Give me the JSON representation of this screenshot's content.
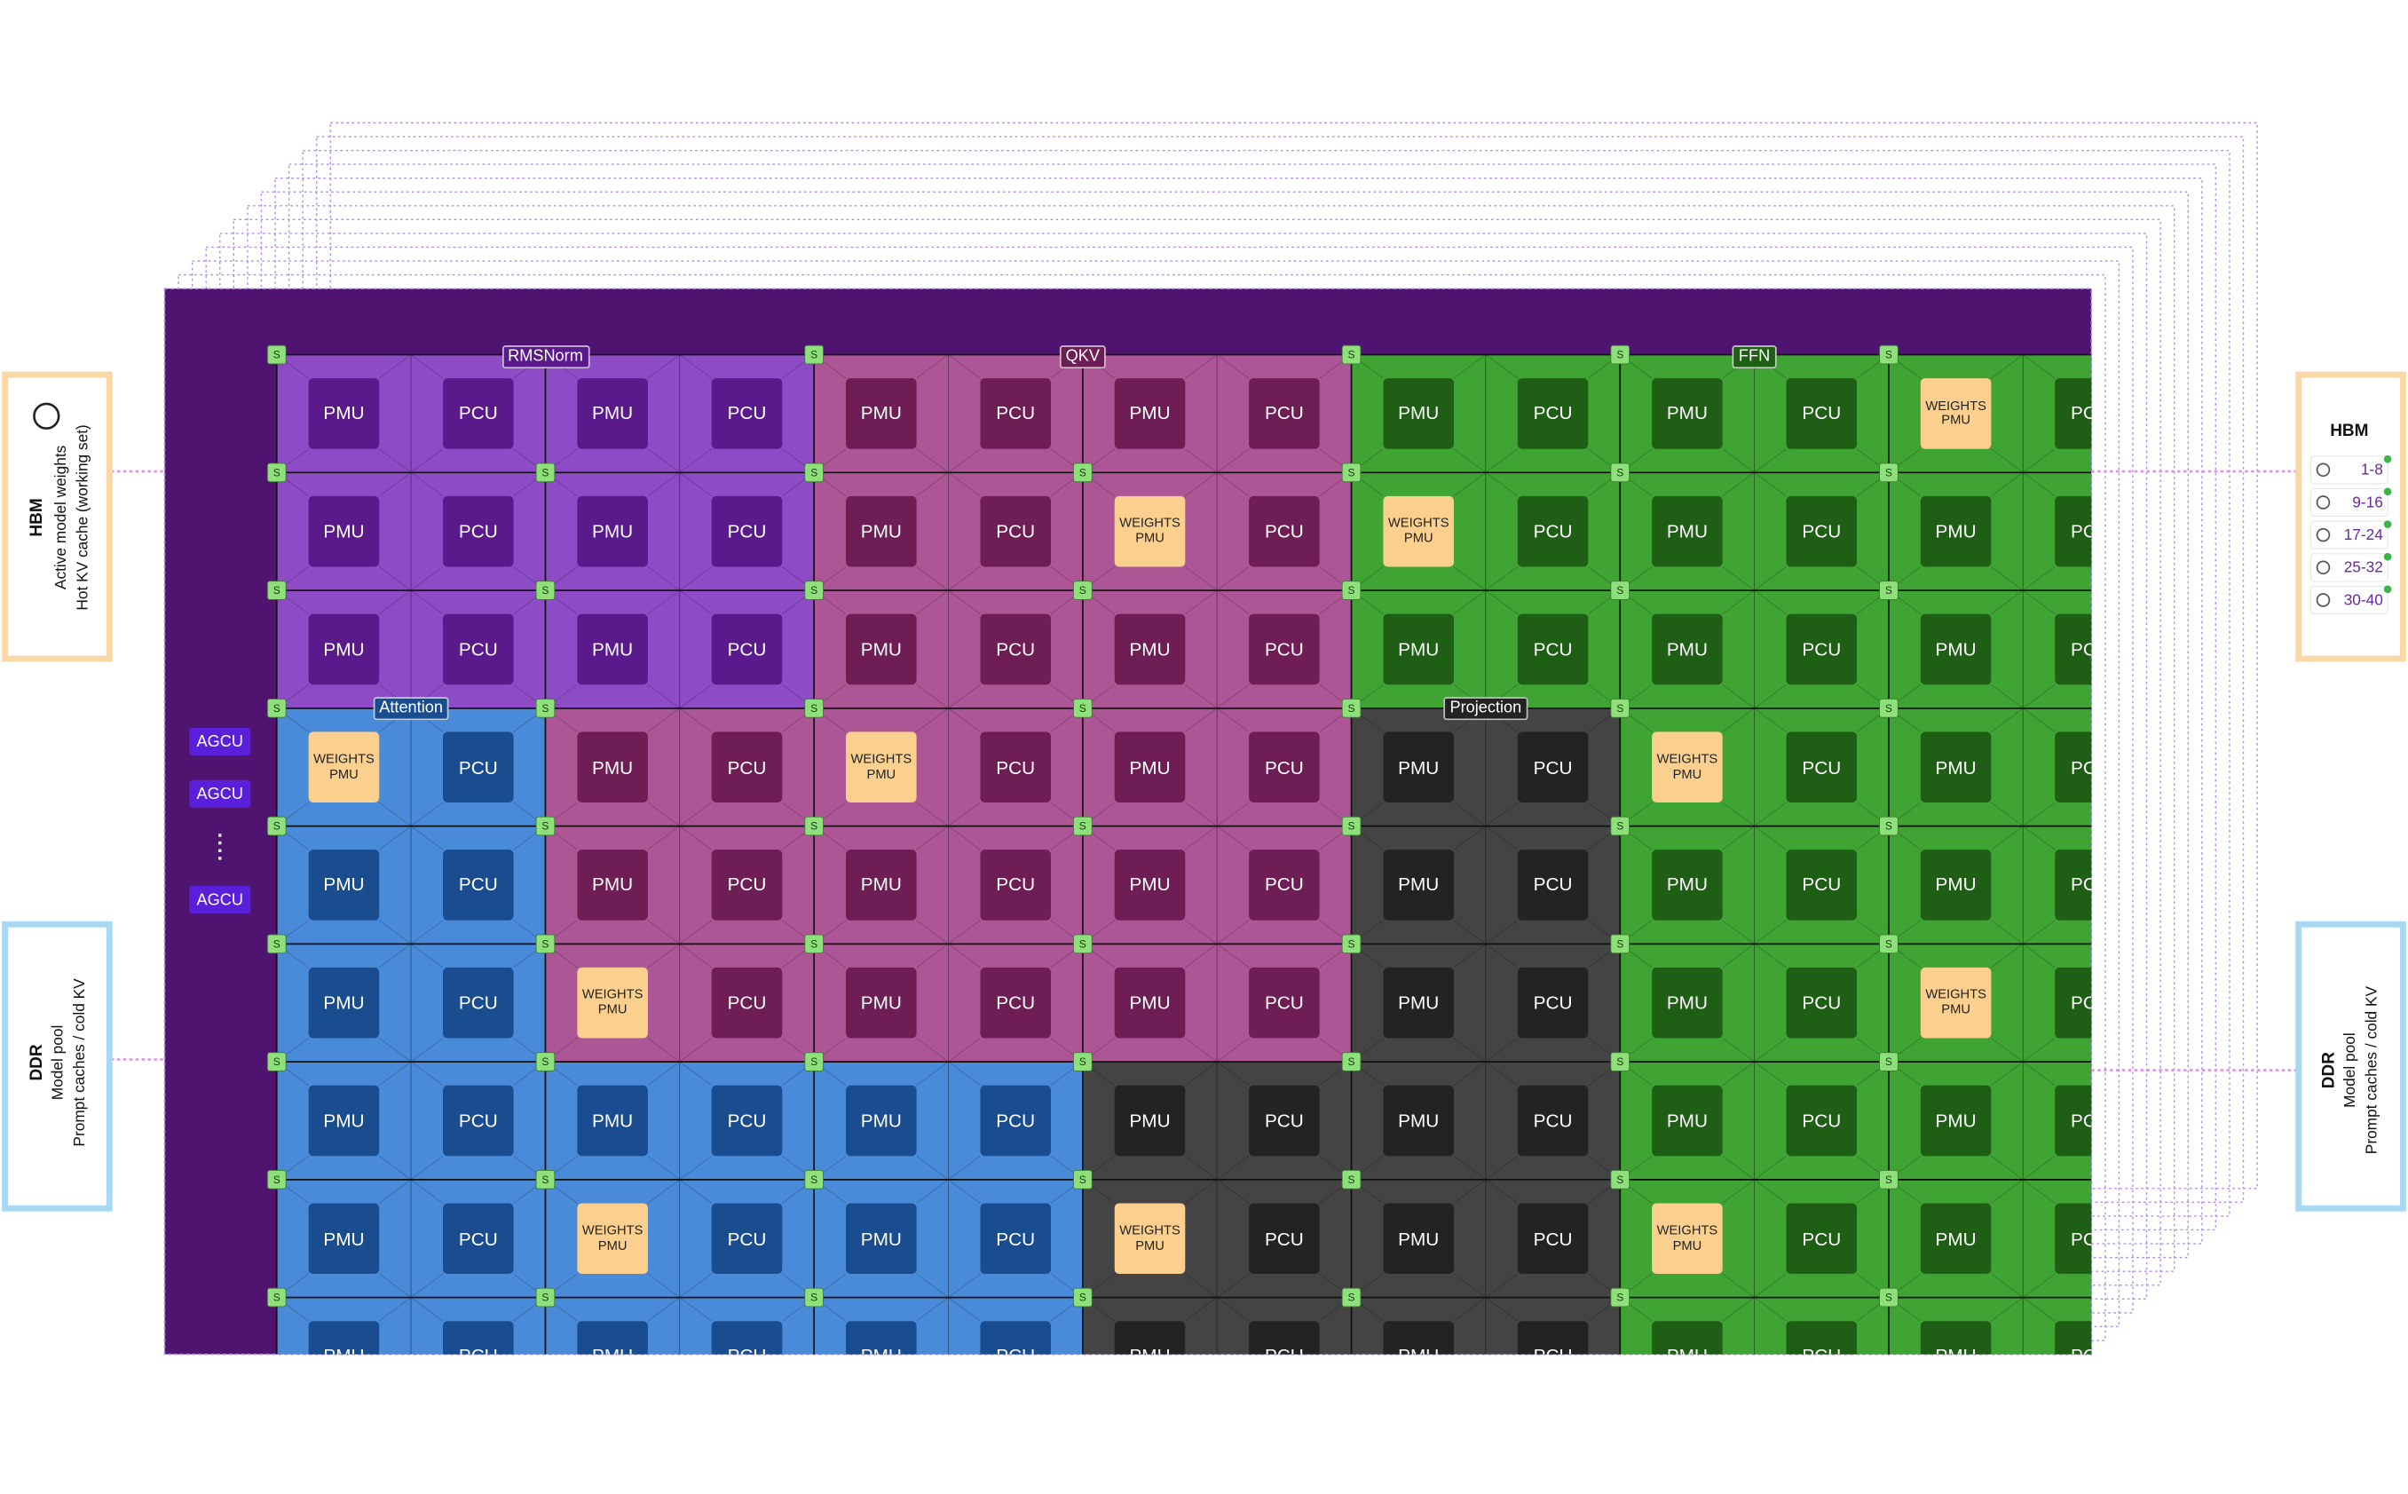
{
  "fabric": {
    "section_labels": [
      "RMSNorm",
      "QKV",
      "FFN",
      "Attention",
      "Projection"
    ],
    "switch_label": "S",
    "agcu_labels": [
      "AGCU",
      "AGCU",
      "AGCU"
    ],
    "grid": [
      [
        "PMU",
        "PCU",
        "PMU",
        "PCU",
        "PMU",
        "PCU",
        "PMU",
        "PCU",
        "PMU",
        "PCU",
        "PMU",
        "PCU",
        "WEIGHTS PMU",
        "PCU"
      ],
      [
        "PMU",
        "PCU",
        "PMU",
        "PCU",
        "PMU",
        "PCU",
        "WEIGHTS PMU",
        "PCU",
        "WEIGHTS PMU",
        "PCU",
        "PMU",
        "PCU",
        "PMU",
        "PCU"
      ],
      [
        "PMU",
        "PCU",
        "PMU",
        "PCU",
        "PMU",
        "PCU",
        "PMU",
        "PCU",
        "PMU",
        "PCU",
        "PMU",
        "PCU",
        "PMU",
        "PCU"
      ],
      [
        "WEIGHTS PMU",
        "PCU",
        "PMU",
        "PCU",
        "WEIGHTS PMU",
        "PCU",
        "PMU",
        "PCU",
        "PMU",
        "PCU",
        "WEIGHTS PMU",
        "PCU",
        "PMU",
        "PCU"
      ],
      [
        "PMU",
        "PCU",
        "PMU",
        "PCU",
        "PMU",
        "PCU",
        "PMU",
        "PCU",
        "PMU",
        "PCU",
        "PMU",
        "PCU",
        "PMU",
        "PCU"
      ],
      [
        "PMU",
        "PCU",
        "WEIGHTS PMU",
        "PCU",
        "PMU",
        "PCU",
        "PMU",
        "PCU",
        "PMU",
        "PCU",
        "PMU",
        "PCU",
        "WEIGHTS PMU",
        "PCU"
      ],
      [
        "PMU",
        "PCU",
        "PMU",
        "PCU",
        "PMU",
        "PCU",
        "PMU",
        "PCU",
        "PMU",
        "PCU",
        "PMU",
        "PCU",
        "PMU",
        "PCU"
      ],
      [
        "PMU",
        "PCU",
        "WEIGHTS PMU",
        "PCU",
        "PMU",
        "PCU",
        "WEIGHTS PMU",
        "PCU",
        "PMU",
        "PCU",
        "WEIGHTS PMU",
        "PCU",
        "PMU",
        "PCU"
      ],
      [
        "PMU",
        "PCU",
        "PMU",
        "PCU",
        "PMU",
        "PCU",
        "PMU",
        "PCU",
        "PMU",
        "PCU",
        "PMU",
        "PCU",
        "PMU",
        "PCU"
      ]
    ]
  },
  "left_panels": [
    {
      "title": "HBM",
      "lines": [
        "Active model weights",
        "Hot KV cache (working set)"
      ]
    },
    {
      "title": "DDR",
      "lines": [
        "Model pool",
        "Prompt caches / cold KV"
      ]
    }
  ],
  "right_panels": {
    "hbm": {
      "title": "HBM",
      "items": [
        "1-8",
        "9-16",
        "17-24",
        "25-32",
        "30-40"
      ]
    },
    "ddr": {
      "title": "DDR",
      "lines": [
        "Model pool",
        "Prompt caches / cold KV"
      ]
    }
  }
}
